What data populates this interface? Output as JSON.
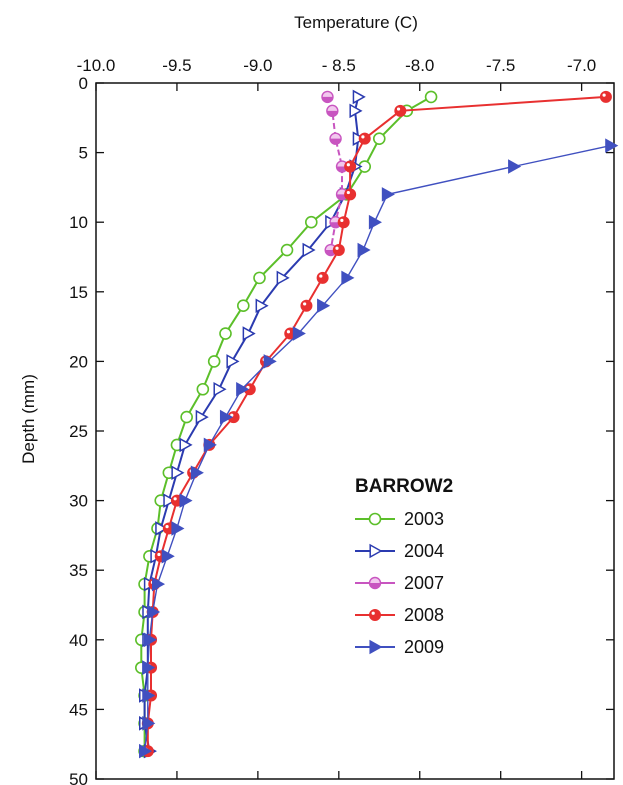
{
  "chart_data": {
    "type": "line",
    "title": "",
    "xlabel": "Temperature (C)",
    "ylabel": "Depth (mm)",
    "xlim": [
      -10.0,
      -6.8
    ],
    "ylim": [
      0,
      50
    ],
    "y_reversed": true,
    "x_axis_position": "top",
    "x_ticks": [
      -10.0,
      -9.5,
      -9.0,
      -8.5,
      -8.0,
      -7.5,
      -7.0
    ],
    "x_tick_labels": [
      "-10.0",
      "-9.5",
      "-9.0",
      "- 8.5",
      "-8.0",
      "-7.5",
      "-7.0"
    ],
    "y_ticks": [
      0,
      5,
      10,
      15,
      20,
      25,
      30,
      35,
      40,
      45,
      50
    ],
    "y_tick_labels": [
      "0",
      "5",
      "10",
      "15",
      "20",
      "25",
      "30",
      "35",
      "40",
      "45",
      "50"
    ],
    "grid": false,
    "legend_title": "BARROW2",
    "legend_position": "right-center",
    "series": [
      {
        "name": "2003",
        "color": "#5cbf2a",
        "marker": "circle-open",
        "points": [
          [
            -7.93,
            1
          ],
          [
            -8.08,
            2
          ],
          [
            -8.25,
            4
          ],
          [
            -8.34,
            6
          ],
          [
            -8.45,
            8
          ],
          [
            -8.67,
            10
          ],
          [
            -8.82,
            12
          ],
          [
            -8.99,
            14
          ],
          [
            -9.09,
            16
          ],
          [
            -9.2,
            18
          ],
          [
            -9.27,
            20
          ],
          [
            -9.34,
            22
          ],
          [
            -9.44,
            24
          ],
          [
            -9.5,
            26
          ],
          [
            -9.55,
            28
          ],
          [
            -9.6,
            30
          ],
          [
            -9.62,
            32
          ],
          [
            -9.67,
            34
          ],
          [
            -9.7,
            36
          ],
          [
            -9.7,
            38
          ],
          [
            -9.72,
            40
          ],
          [
            -9.72,
            42
          ],
          [
            -9.7,
            44
          ],
          [
            -9.7,
            46
          ],
          [
            -9.7,
            48
          ]
        ]
      },
      {
        "name": "2004",
        "color": "#2b3bb0",
        "marker": "triangle-right-open",
        "points": [
          [
            -8.38,
            1
          ],
          [
            -8.4,
            2
          ],
          [
            -8.38,
            4
          ],
          [
            -8.4,
            6
          ],
          [
            -8.46,
            8
          ],
          [
            -8.55,
            10
          ],
          [
            -8.69,
            12
          ],
          [
            -8.85,
            14
          ],
          [
            -8.98,
            16
          ],
          [
            -9.06,
            18
          ],
          [
            -9.16,
            20
          ],
          [
            -9.24,
            22
          ],
          [
            -9.35,
            24
          ],
          [
            -9.45,
            26
          ],
          [
            -9.5,
            28
          ],
          [
            -9.55,
            30
          ],
          [
            -9.6,
            32
          ],
          [
            -9.63,
            34
          ],
          [
            -9.67,
            36
          ],
          [
            -9.68,
            38
          ],
          [
            -9.68,
            40
          ],
          [
            -9.68,
            42
          ],
          [
            -9.7,
            44
          ],
          [
            -9.7,
            46
          ],
          [
            -9.67,
            48
          ]
        ]
      },
      {
        "name": "2007",
        "color": "#c855c0",
        "marker": "circle-half",
        "points": [
          [
            -8.57,
            1
          ],
          [
            -8.54,
            2
          ],
          [
            -8.52,
            4
          ],
          [
            -8.48,
            6
          ],
          [
            -8.48,
            8
          ],
          [
            -8.52,
            10
          ],
          [
            -8.55,
            12
          ]
        ]
      },
      {
        "name": "2008",
        "color": "#e83030",
        "marker": "circle-filled",
        "points": [
          [
            -6.85,
            1
          ],
          [
            -8.12,
            2
          ],
          [
            -8.34,
            4
          ],
          [
            -8.43,
            6
          ],
          [
            -8.43,
            8
          ],
          [
            -8.47,
            10
          ],
          [
            -8.5,
            12
          ],
          [
            -8.6,
            14
          ],
          [
            -8.7,
            16
          ],
          [
            -8.8,
            18
          ],
          [
            -8.95,
            20
          ],
          [
            -9.05,
            22
          ],
          [
            -9.15,
            24
          ],
          [
            -9.3,
            26
          ],
          [
            -9.4,
            28
          ],
          [
            -9.5,
            30
          ],
          [
            -9.55,
            32
          ],
          [
            -9.6,
            34
          ],
          [
            -9.64,
            36
          ],
          [
            -9.65,
            38
          ],
          [
            -9.66,
            40
          ],
          [
            -9.66,
            42
          ],
          [
            -9.66,
            44
          ],
          [
            -9.68,
            46
          ],
          [
            -9.68,
            48
          ]
        ]
      },
      {
        "name": "2009",
        "color": "#4050c0",
        "marker": "triangle-right-filled",
        "points": [
          [
            -6.82,
            4.5
          ],
          [
            -7.42,
            6
          ],
          [
            -8.2,
            8
          ],
          [
            -8.28,
            10
          ],
          [
            -8.35,
            12
          ],
          [
            -8.45,
            14
          ],
          [
            -8.6,
            16
          ],
          [
            -8.75,
            18
          ],
          [
            -8.93,
            20
          ],
          [
            -9.1,
            22
          ],
          [
            -9.2,
            24
          ],
          [
            -9.3,
            26
          ],
          [
            -9.38,
            28
          ],
          [
            -9.45,
            30
          ],
          [
            -9.5,
            32
          ],
          [
            -9.56,
            34
          ],
          [
            -9.62,
            36
          ],
          [
            -9.65,
            38
          ],
          [
            -9.67,
            40
          ],
          [
            -9.68,
            42
          ],
          [
            -9.68,
            44
          ],
          [
            -9.68,
            46
          ],
          [
            -9.7,
            48
          ]
        ]
      }
    ]
  }
}
